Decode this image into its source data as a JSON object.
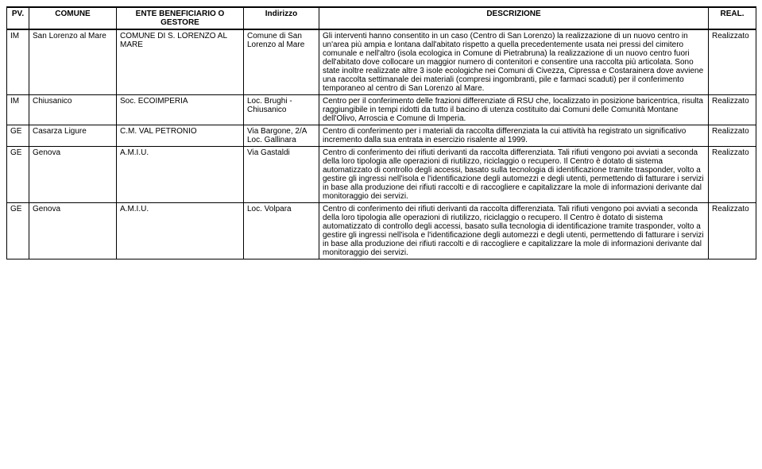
{
  "headers": {
    "pv": "PV.",
    "comune": "COMUNE",
    "ente": "ENTE BENEFICIARIO O GESTORE",
    "indirizzo": "Indirizzo",
    "descrizione": "DESCRIZIONE",
    "real": "REAL."
  },
  "rows": [
    {
      "pv": "IM",
      "comune": "San Lorenzo al Mare",
      "ente": "COMUNE DI S. LORENZO AL MARE",
      "indirizzo": "Comune di San Lorenzo al Mare",
      "descrizione": "Gli interventi hanno consentito in un caso (Centro di San Lorenzo) la realizzazione di un nuovo centro in un'area più ampia e lontana dall'abitato rispetto a quella precedentemente usata nei pressi del cimitero comunale e nell'altro (isola ecologica in Comune di Pietrabruna) la realizzazione di un nuovo centro fuori dell'abitato dove collocare un maggior numero di contenitori e consentire una raccolta più articolata. Sono state inoltre realizzate altre 3 isole ecologiche nei Comuni di Civezza, Cipressa e Costarainera dove avviene una raccolta settimanale dei materiali (compresi ingombranti, pile e farmaci scaduti) per il conferimento temporaneo al centro di San Lorenzo al Mare.",
      "real": "Realizzato"
    },
    {
      "pv": "IM",
      "comune": "Chiusanico",
      "ente": "Soc. ECOIMPERIA",
      "indirizzo": "Loc. Brughi - Chiusanico",
      "descrizione": "Centro per il conferimento delle frazioni differenziate di RSU che, localizzato in posizione baricentrica, risulta raggiungibile in tempi ridotti da tutto il bacino di utenza costituito dai Comuni delle Comunità Montane dell'Olivo, Arroscia e Comune di Imperia.",
      "real": "Realizzato"
    },
    {
      "pv": "GE",
      "comune": "Casarza Ligure",
      "ente": "C.M. VAL PETRONIO",
      "indirizzo": "Via Bargone, 2/A Loc. Gallinara",
      "descrizione": "Centro di conferimento per i materiali da raccolta differenziata la cui attività ha registrato un significativo incremento dalla sua entrata in esercizio risalente al 1999.",
      "real": "Realizzato"
    },
    {
      "pv": "GE",
      "comune": "Genova",
      "ente": "A.M.I.U.",
      "indirizzo": "Via Gastaldi",
      "descrizione": "Centro di conferimento dei rifiuti derivanti da raccolta differenziata. Tali rifiuti vengono poi avviati a seconda della loro tipologia alle operazioni di riutilizzo, riciclaggio o recupero. Il Centro è dotato di sistema automatizzato di controllo degli accessi, basato sulla tecnologia di identificazione tramite trasponder, volto a gestire gli ingressi nell'isola e l'identificazione degli automezzi e degli utenti, permettendo di fatturare i servizi in base alla produzione dei rifiuti raccolti e di raccogliere e capitalizzare la mole di informazioni derivante dal monitoraggio dei servizi.",
      "real": "Realizzato"
    },
    {
      "pv": "GE",
      "comune": "Genova",
      "ente": "A.M.I.U.",
      "indirizzo": "Loc. Volpara",
      "descrizione": "Centro di conferimento dei rifiuti derivanti da raccolta differenziata. Tali rifiuti vengono poi avviati a seconda della loro tipologia alle operazioni di riutilizzo, riciclaggio o recupero. Il Centro è dotato di sistema automatizzato di controllo degli accessi, basato sulla tecnologia di identificazione tramite trasponder, volto a gestire gli ingressi nell'isola e l'identificazione degli automezzi e degli utenti, permettendo di fatturare i servizi in base alla produzione dei rifiuti raccolti e di raccogliere e capitalizzare la mole di informazioni derivante dal monitoraggio dei servizi.",
      "real": "Realizzato"
    }
  ]
}
